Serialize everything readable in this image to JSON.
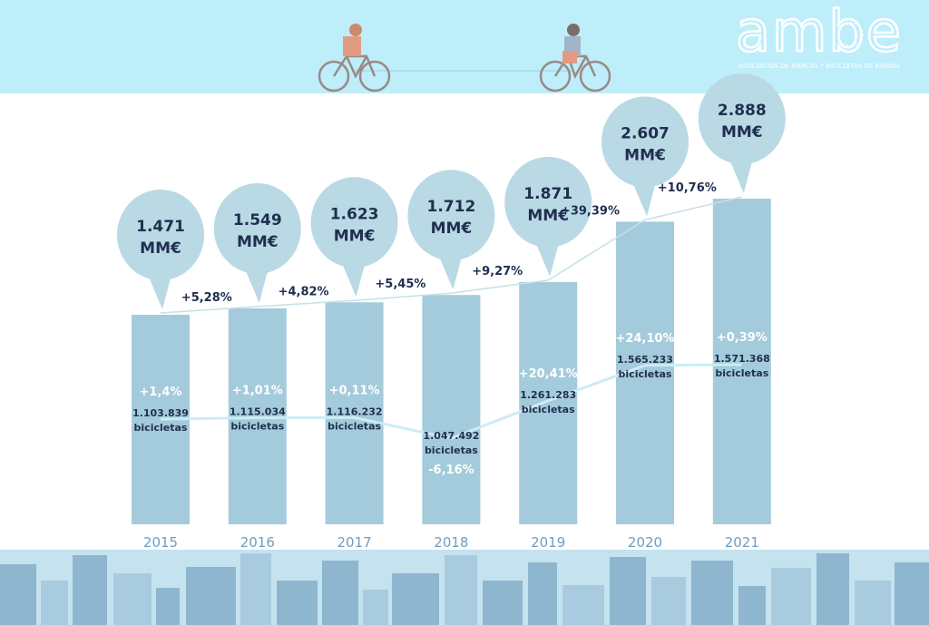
{
  "brand": {
    "logo_text": "ambe",
    "subtitle": "ASOCIACIÓN DE MARCAS Y BICICLETAS DE ESPAÑA"
  },
  "colors": {
    "sky": "#bdeefa",
    "bar": "#a4cbdb",
    "bubble": "#b9d9e4",
    "text_dark": "#1f2f4f",
    "text_white": "#ffffff",
    "year_text": "#6d9ec4",
    "city": "#8eb6cf",
    "city_light": "#a9cbe0",
    "connector": "#c6e0ea",
    "count_line": "#ccecf6"
  },
  "chart_data": {
    "type": "bar",
    "categories": [
      "2015",
      "2016",
      "2017",
      "2018",
      "2019",
      "2020",
      "2021"
    ],
    "series": [
      {
        "values": [
          1471,
          1549,
          1623,
          1712,
          1871,
          2607,
          2888
        ],
        "value_labels": [
          "1.471",
          "1.549",
          "1.623",
          "1.712",
          "1.871",
          "2.607",
          "2.888"
        ],
        "unit": "MM€",
        "growth_labels": [
          "",
          "+5,28%",
          "+4,82%",
          "+5,45%",
          "+9,27%",
          "+39,39%",
          "+10,76%"
        ]
      },
      {
        "values": [
          1103839,
          1115034,
          1116232,
          1047492,
          1261283,
          1565233,
          1571368
        ],
        "value_labels": [
          "1.103.839",
          "1.115.034",
          "1.116.232",
          "1.047.492",
          "1.261.283",
          "1.565.233",
          "1.571.368"
        ],
        "unit": "bicicletas",
        "growth_labels": [
          "+1,4%",
          "+1,01%",
          "+0,11%",
          "-6,16%",
          "+20,41%",
          "+24,10%",
          "+0,39%"
        ]
      }
    ]
  }
}
